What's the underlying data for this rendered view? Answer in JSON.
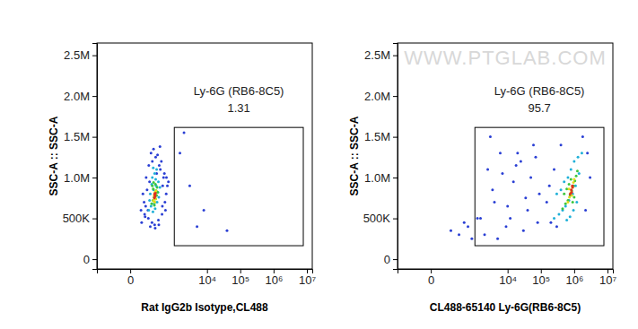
{
  "chart_data": [
    {
      "type": "scatter",
      "x_label": "Rat IgG2b Isotype,CL488",
      "y_label": "SSC-A :: SSC-A",
      "log": "x",
      "xlim": [
        -450,
        14500000
      ],
      "xticks": [
        0,
        {
          "value": 10000,
          "label": "10⁴"
        },
        {
          "value": 100000,
          "label": "10⁵"
        },
        {
          "value": 1000000,
          "label": "10⁶"
        },
        {
          "value": 10000000,
          "label": "10⁷"
        }
      ],
      "ylim": [
        -120000,
        2650000
      ],
      "yticks": [
        0,
        {
          "value": 500000,
          "label": "500K"
        },
        {
          "value": 1000000,
          "label": "1.0M"
        },
        {
          "value": 1500000,
          "label": "1.5M"
        },
        {
          "value": 2000000,
          "label": "2.0M"
        },
        {
          "value": 2500000,
          "label": "2.5M"
        }
      ],
      "gate": {
        "name": "Ly-6G (RB6-8C5)",
        "value": 1.31,
        "xlim": [
          1000,
          7800000
        ],
        "ylim": [
          165000,
          1615000
        ]
      },
      "series": [
        {
          "color": "#2a3fd4",
          "x": [
            60,
            90,
            120,
            150,
            220,
            300,
            400,
            500,
            600,
            80,
            110,
            140,
            260,
            350,
            450,
            550,
            70,
            100,
            130,
            180,
            240,
            320,
            420,
            520,
            95,
            160,
            280,
            380,
            480,
            650,
            55,
            85,
            125,
            175,
            230,
            310,
            410,
            560,
            200,
            340,
            2000,
            3000,
            5000,
            8000,
            1500,
            40000
          ],
          "values": [
            450000,
            520000,
            600000,
            400000,
            420000,
            480000,
            550000,
            700000,
            900000,
            700000,
            850000,
            950000,
            1050000,
            1100000,
            1000000,
            800000,
            800000,
            1000000,
            1150000,
            1200000,
            1250000,
            1150000,
            900000,
            600000,
            650000,
            1300000,
            1280000,
            1200000,
            1050000,
            950000,
            600000,
            550000,
            500000,
            450000,
            380000,
            420000,
            650000,
            1000000,
            1350000,
            1380000,
            1550000,
            900000,
            400000,
            600000,
            1300000,
            350000
          ]
        },
        {
          "color": "#1fb0d8",
          "x": [
            130,
            160,
            190,
            230,
            270,
            310,
            150,
            200,
            250,
            300,
            180,
            220,
            260,
            140,
            170,
            210,
            290,
            340,
            240,
            195
          ],
          "values": [
            600000,
            650000,
            580000,
            620000,
            700000,
            760000,
            800000,
            850000,
            900000,
            950000,
            1000000,
            1050000,
            1100000,
            720000,
            920000,
            680000,
            820000,
            880000,
            980000,
            1120000
          ]
        },
        {
          "color": "#3cc63c",
          "x": [
            170,
            190,
            210,
            230,
            250,
            270,
            180,
            200,
            220,
            240,
            260,
            280,
            195,
            215,
            235
          ],
          "values": [
            680000,
            720000,
            760000,
            800000,
            840000,
            880000,
            900000,
            940000,
            700000,
            740000,
            780000,
            820000,
            860000,
            660000,
            920000
          ]
        },
        {
          "color": "#e6dc1e",
          "x": [
            200,
            215,
            230,
            245,
            210,
            225,
            240,
            220
          ],
          "values": [
            720000,
            760000,
            800000,
            840000,
            780000,
            820000,
            740000,
            700000
          ]
        },
        {
          "color": "#e0301e",
          "x": [
            215,
            225,
            235,
            220,
            230
          ],
          "values": [
            750000,
            780000,
            810000,
            800000,
            770000
          ]
        }
      ]
    },
    {
      "type": "scatter",
      "x_label": "CL488-65140 Ly-6G(RB6-8C5)",
      "y_label": "SSC-A :: SSC-A",
      "log": "x",
      "xlim": [
        -450,
        14500000
      ],
      "xticks": [
        0,
        {
          "value": 10000,
          "label": "10⁴"
        },
        {
          "value": 100000,
          "label": "10⁵"
        },
        {
          "value": 1000000,
          "label": "10⁶"
        },
        {
          "value": 10000000,
          "label": "10⁷"
        }
      ],
      "ylim": [
        -120000,
        2650000
      ],
      "yticks": [
        0,
        {
          "value": 500000,
          "label": "500K"
        },
        {
          "value": 1000000,
          "label": "1.0M"
        },
        {
          "value": 1500000,
          "label": "1.5M"
        },
        {
          "value": 2000000,
          "label": "2.0M"
        },
        {
          "value": 2500000,
          "label": "2.5M"
        }
      ],
      "gate": {
        "name": "Ly-6G (RB6-8C5)",
        "value": 95.7,
        "xlim": [
          1000,
          7800000
        ],
        "ylim": [
          165000,
          1615000
        ]
      },
      "series": [
        {
          "color": "#2a3fd4",
          "x": [
            1500,
            2500,
            4000,
            6000,
            9000,
            15000,
            25000,
            40000,
            60000,
            90000,
            2000,
            3500,
            7000,
            12000,
            20000,
            35000,
            50000,
            80000,
            3000,
            5000,
            10000,
            18000,
            30000,
            70000,
            300,
            600,
            150,
            800,
            450,
            1200,
            200000,
            300000,
            150000,
            2500000,
            3000000,
            250000,
            400000,
            180000,
            1800000,
            2200000
          ],
          "values": [
            500000,
            1100000,
            700000,
            1300000,
            400000,
            950000,
            1200000,
            600000,
            1400000,
            800000,
            300000,
            850000,
            1050000,
            500000,
            1300000,
            750000,
            1000000,
            450000,
            1500000,
            250000,
            650000,
            1150000,
            350000,
            1250000,
            300000,
            400000,
            350000,
            250000,
            450000,
            500000,
            450000,
            400000,
            700000,
            1300000,
            1000000,
            1100000,
            1400000,
            900000,
            1500000,
            600000
          ]
        },
        {
          "color": "#1fb0d8",
          "x": [
            250000,
            350000,
            450000,
            550000,
            700000,
            900000,
            1100000,
            1400000,
            300000,
            400000,
            500000,
            650000,
            800000,
            1000000,
            1300000,
            1700000,
            600000,
            750000,
            950000,
            1200000
          ],
          "values": [
            500000,
            550000,
            600000,
            650000,
            720000,
            800000,
            900000,
            1050000,
            800000,
            850000,
            950000,
            1000000,
            1100000,
            1200000,
            1250000,
            1300000,
            480000,
            520000,
            600000,
            700000
          ]
        },
        {
          "color": "#3cc63c",
          "x": [
            450000,
            550000,
            650000,
            750000,
            850000,
            950000,
            1050000,
            500000,
            600000,
            700000,
            800000,
            900000,
            1000000,
            1150000,
            1250000
          ],
          "values": [
            620000,
            680000,
            720000,
            780000,
            840000,
            900000,
            960000,
            800000,
            860000,
            920000,
            980000,
            700000,
            760000,
            1020000,
            1080000
          ]
        },
        {
          "color": "#e6dc1e",
          "x": [
            650000,
            720000,
            800000,
            880000,
            950000,
            700000,
            850000,
            1000000
          ],
          "values": [
            700000,
            760000,
            820000,
            880000,
            940000,
            860000,
            780000,
            980000
          ]
        },
        {
          "color": "#e0301e",
          "x": [
            760000,
            820000,
            880000,
            840000,
            900000
          ],
          "values": [
            800000,
            850000,
            900000,
            820000,
            880000
          ]
        }
      ]
    }
  ],
  "watermark": "WWW.PTGLAB.COM"
}
